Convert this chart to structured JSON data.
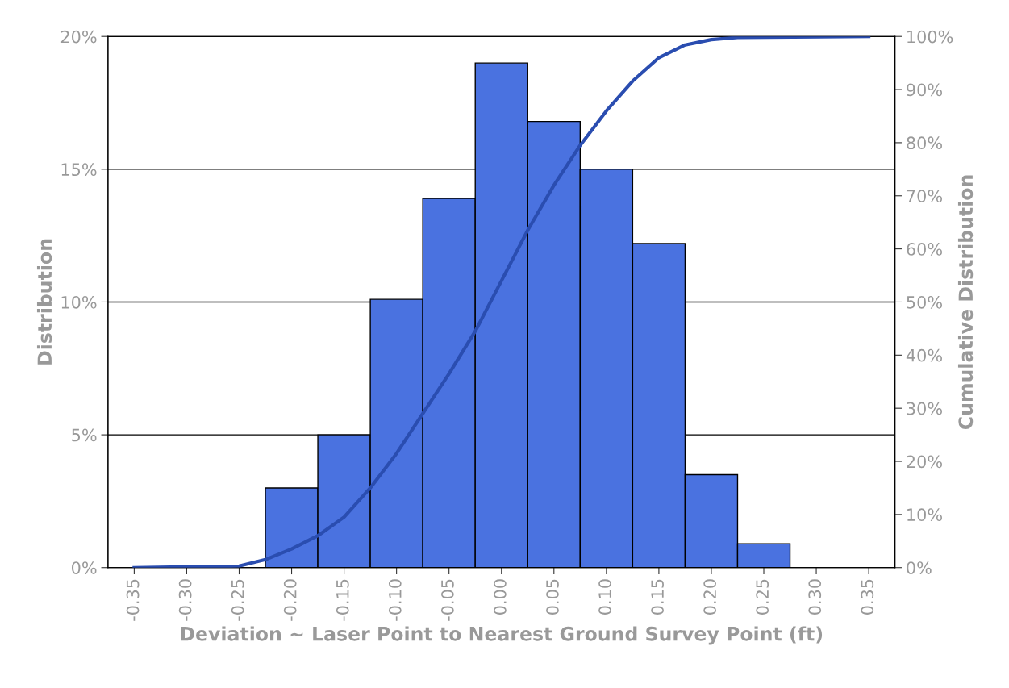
{
  "chart_data": {
    "type": "histogram",
    "xlabel": "Deviation ~ Laser Point to Nearest Ground Survey Point (ft)",
    "ylabel": "Distribution",
    "y2label": "Cumulative Distribution",
    "bins": [
      -0.225,
      -0.175,
      -0.125,
      -0.075,
      -0.025,
      0.025,
      0.075,
      0.125,
      0.175,
      0.225,
      0.275
    ],
    "series": [
      {
        "color": "#4a72e0",
        "values": [
          3.0,
          5.0,
          10.1,
          13.9,
          19.0,
          16.8,
          15.0,
          12.2,
          3.5,
          0.9
        ]
      },
      {
        "type": "line",
        "axis": "y2",
        "color": "#2a4db0",
        "x": [
          -0.35,
          -0.25,
          -0.225,
          -0.2,
          -0.175,
          -0.15,
          -0.125,
          -0.1,
          -0.075,
          -0.05,
          -0.025,
          0.0,
          0.025,
          0.05,
          0.075,
          0.1,
          0.125,
          0.15,
          0.175,
          0.2,
          0.225,
          0.35
        ],
        "values": [
          0,
          0.3,
          1.5,
          3.5,
          6,
          9.5,
          15,
          21.5,
          29,
          36.5,
          44.5,
          54,
          63.5,
          72,
          79.5,
          86,
          91.6,
          96,
          98.4,
          99.4,
          99.8,
          100
        ]
      }
    ],
    "xlim": [
      -0.375,
      0.375
    ],
    "xticks": [
      {
        "value": -0.35,
        "label": "-0.35"
      },
      {
        "value": -0.3,
        "label": "-0.30"
      },
      {
        "value": -0.25,
        "label": "-0.25"
      },
      {
        "value": -0.2,
        "label": "-0.20"
      },
      {
        "value": -0.15,
        "label": "-0.15"
      },
      {
        "value": -0.1,
        "label": "-0.10"
      },
      {
        "value": -0.05,
        "label": "-0.05"
      },
      {
        "value": 0,
        "label": "0.00"
      },
      {
        "value": 0.05,
        "label": "0.05"
      },
      {
        "value": 0.1,
        "label": "0.10"
      },
      {
        "value": 0.15,
        "label": "0.15"
      },
      {
        "value": 0.2,
        "label": "0.20"
      },
      {
        "value": 0.25,
        "label": "0.25"
      },
      {
        "value": 0.3,
        "label": "0.30"
      },
      {
        "value": 0.35,
        "label": "0.35"
      }
    ],
    "ylim": [
      0,
      20
    ],
    "yticks": [
      {
        "value": 0,
        "label": "0%"
      },
      {
        "value": 5,
        "label": "5%"
      },
      {
        "value": 10,
        "label": "10%"
      },
      {
        "value": 15,
        "label": "15%"
      },
      {
        "value": 20,
        "label": "20%"
      }
    ],
    "y2lim": [
      0,
      100
    ],
    "y2ticks": [
      {
        "value": 0,
        "label": "0%"
      },
      {
        "value": 10,
        "label": "10%"
      },
      {
        "value": 20,
        "label": "20%"
      },
      {
        "value": 30,
        "label": "30%"
      },
      {
        "value": 40,
        "label": "40%"
      },
      {
        "value": 50,
        "label": "50%"
      },
      {
        "value": 60,
        "label": "60%"
      },
      {
        "value": 70,
        "label": "70%"
      },
      {
        "value": 80,
        "label": "80%"
      },
      {
        "value": 90,
        "label": "90%"
      },
      {
        "value": 100,
        "label": "100%"
      }
    ],
    "grid": "y"
  }
}
